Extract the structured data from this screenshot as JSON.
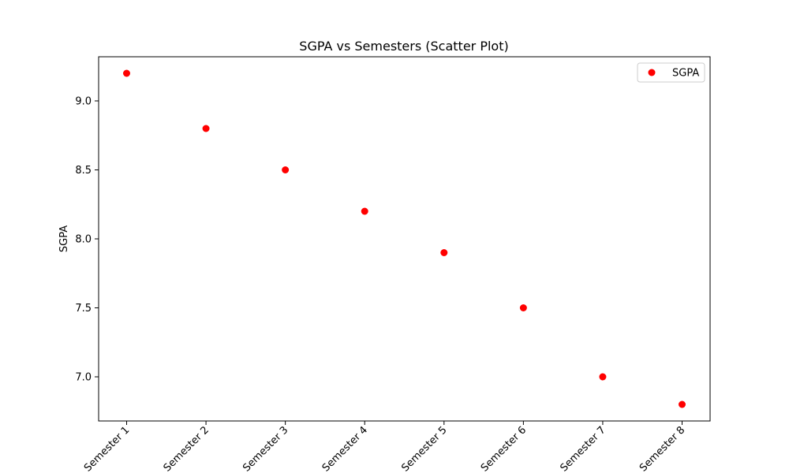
{
  "chart_data": {
    "type": "scatter",
    "title": "SGPA vs Semesters (Scatter Plot)",
    "xlabel": "",
    "ylabel": "SGPA",
    "categories": [
      "Semester 1",
      "Semester 2",
      "Semester 3",
      "Semester 4",
      "Semester 5",
      "Semester 6",
      "Semester 7",
      "Semester 8"
    ],
    "series": [
      {
        "name": "SGPA",
        "color": "#ff0000",
        "values": [
          9.2,
          8.8,
          8.5,
          8.2,
          7.9,
          7.5,
          7.0,
          6.8
        ]
      }
    ],
    "ylim": [
      6.68,
      9.32
    ],
    "yticks": [
      "7.0",
      "7.5",
      "8.0",
      "8.5",
      "9.0"
    ],
    "grid": false,
    "legend": "top-right"
  }
}
